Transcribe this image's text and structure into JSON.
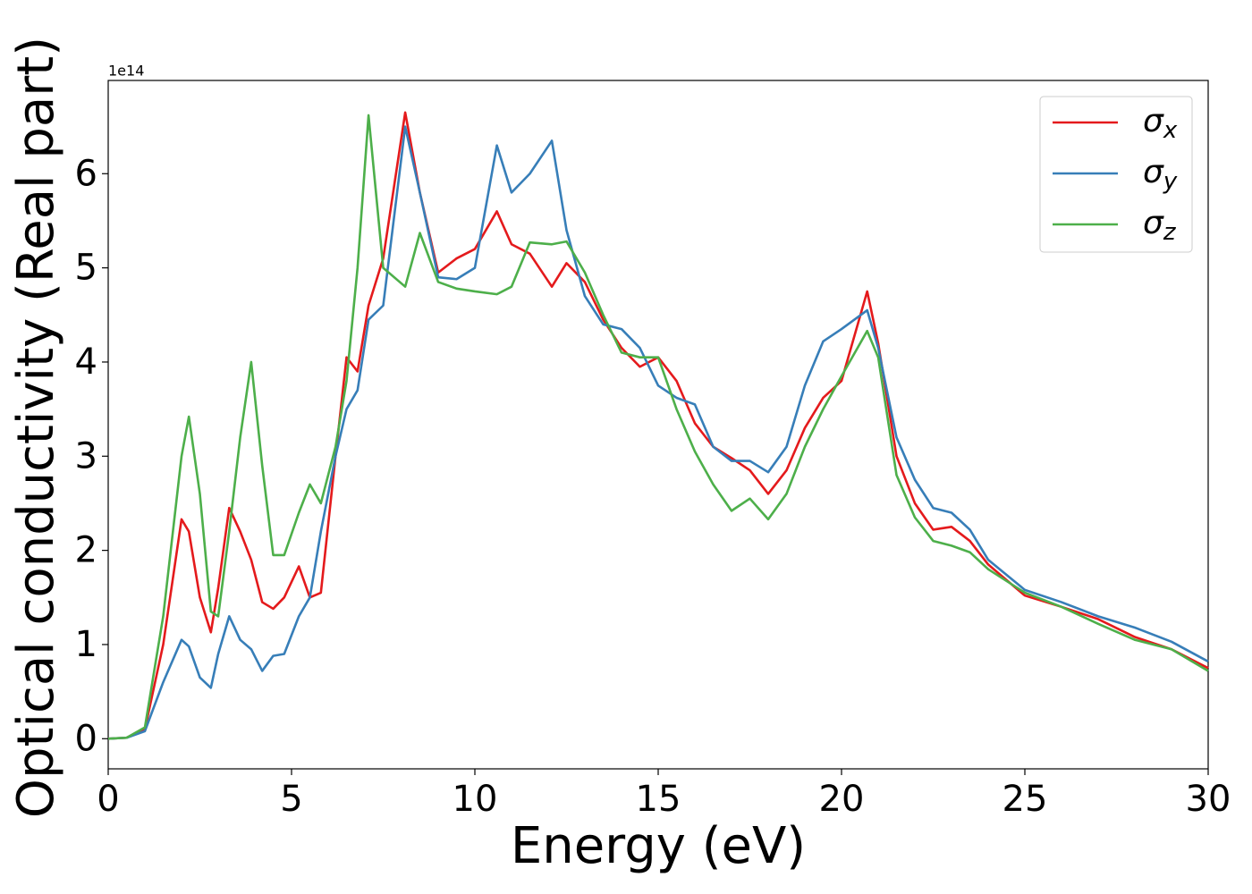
{
  "chart_data": {
    "type": "line",
    "xlabel": "Energy (eV)",
    "ylabel": "Optical conductivity (Real part)",
    "y_offset_label": "1e14",
    "x": [
      0,
      0.5,
      1,
      1.5,
      2,
      2.2,
      2.5,
      2.8,
      3,
      3.3,
      3.6,
      3.9,
      4.2,
      4.5,
      4.8,
      5.2,
      5.5,
      5.8,
      6.2,
      6.5,
      6.8,
      7.1,
      7.5,
      8.1,
      8.5,
      9,
      9.5,
      10,
      10.6,
      11,
      11.5,
      12.1,
      12.5,
      13,
      13.5,
      14,
      14.5,
      15,
      15.5,
      16,
      16.5,
      17,
      17.5,
      18,
      18.5,
      19,
      19.5,
      20,
      20.7,
      21,
      21.5,
      22,
      22.5,
      23,
      23.5,
      24,
      25,
      26,
      27,
      28,
      29,
      30
    ],
    "series": [
      {
        "name": "σx",
        "color": "#e41a1c",
        "values": [
          0,
          0.01,
          0.1,
          1.0,
          2.33,
          2.2,
          1.5,
          1.13,
          1.6,
          2.45,
          2.2,
          1.9,
          1.45,
          1.38,
          1.5,
          1.83,
          1.5,
          1.55,
          3.0,
          4.05,
          3.9,
          4.6,
          5.1,
          6.65,
          5.8,
          4.95,
          5.1,
          5.2,
          5.6,
          5.25,
          5.15,
          4.8,
          5.05,
          4.85,
          4.45,
          4.15,
          3.95,
          4.05,
          3.8,
          3.35,
          3.1,
          2.98,
          2.85,
          2.6,
          2.85,
          3.3,
          3.62,
          3.8,
          4.75,
          4.2,
          3.0,
          2.5,
          2.22,
          2.25,
          2.1,
          1.85,
          1.52,
          1.4,
          1.27,
          1.08,
          0.95,
          0.75
        ]
      },
      {
        "name": "σy",
        "color": "#377eb8",
        "values": [
          0,
          0.01,
          0.08,
          0.6,
          1.05,
          0.98,
          0.65,
          0.54,
          0.9,
          1.3,
          1.05,
          0.95,
          0.72,
          0.88,
          0.9,
          1.3,
          1.5,
          2.2,
          3.0,
          3.5,
          3.7,
          4.45,
          4.6,
          6.5,
          5.8,
          4.9,
          4.88,
          5.0,
          6.3,
          5.8,
          6.0,
          6.35,
          5.4,
          4.7,
          4.4,
          4.35,
          4.15,
          3.75,
          3.62,
          3.55,
          3.1,
          2.95,
          2.95,
          2.83,
          3.1,
          3.75,
          4.22,
          4.35,
          4.55,
          4.15,
          3.2,
          2.75,
          2.45,
          2.4,
          2.22,
          1.9,
          1.58,
          1.45,
          1.3,
          1.18,
          1.03,
          0.82
        ]
      },
      {
        "name": "σz",
        "color": "#4daf4a",
        "values": [
          0,
          0.01,
          0.12,
          1.3,
          3.0,
          3.42,
          2.6,
          1.35,
          1.3,
          2.2,
          3.2,
          4.0,
          2.9,
          1.95,
          1.95,
          2.4,
          2.7,
          2.5,
          3.1,
          3.8,
          5.0,
          6.62,
          5.0,
          4.8,
          5.37,
          4.85,
          4.78,
          4.75,
          4.72,
          4.8,
          5.27,
          5.25,
          5.28,
          4.95,
          4.5,
          4.1,
          4.05,
          4.05,
          3.5,
          3.05,
          2.7,
          2.42,
          2.55,
          2.33,
          2.6,
          3.1,
          3.5,
          3.85,
          4.33,
          4.05,
          2.8,
          2.35,
          2.1,
          2.05,
          1.98,
          1.8,
          1.55,
          1.4,
          1.22,
          1.05,
          0.95,
          0.72
        ]
      }
    ],
    "xlim": [
      0,
      30
    ],
    "xticks": [
      0,
      5,
      10,
      15,
      20,
      25,
      30
    ],
    "ylim": [
      -0.32,
      6.99
    ],
    "yticks": [
      0,
      1,
      2,
      3,
      4,
      5,
      6
    ],
    "grid": false,
    "legend": "upper right"
  }
}
